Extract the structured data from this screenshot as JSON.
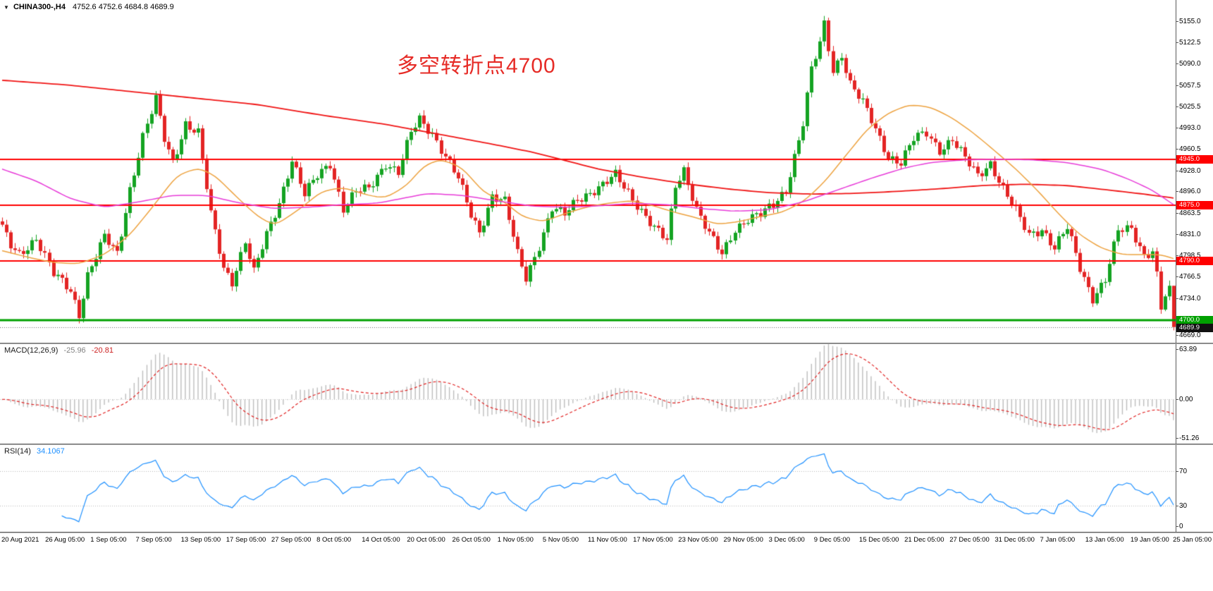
{
  "window": {
    "dropdown_glyph": "▼",
    "title": "CHINA300-,H4",
    "ohlc_text": "4752.6 4752.6 4684.8 4689.9"
  },
  "annotation": {
    "text": "多空转折点4700",
    "color": "#e62b26"
  },
  "indicators": {
    "macd": {
      "label": "MACD(12,26,9)",
      "main_value": "-25.96",
      "signal_value": "-20.81"
    },
    "rsi": {
      "label": "RSI(14)",
      "value": "34.1067"
    }
  },
  "chart_data": {
    "type": "candlestick",
    "symbol": "CHINA300-",
    "timeframe": "H4",
    "title": "多空转折点4700",
    "bars": 276,
    "up_color": "#14a322",
    "down_color": "#e32424",
    "price_axis": {
      "min": 4666,
      "max": 5187,
      "ticks": [
        5155.0,
        5122.5,
        5090.0,
        5057.5,
        5025.5,
        4993.0,
        4960.5,
        4928.0,
        4896.0,
        4863.5,
        4831.0,
        4798.5,
        4766.5,
        4734.0,
        4669.0
      ]
    },
    "hlines": [
      {
        "price": 4945.0,
        "label": "4945.0",
        "color": "#ff0000",
        "width": 2
      },
      {
        "price": 4875.0,
        "label": "4875.0",
        "color": "#ff0000",
        "width": 2
      },
      {
        "price": 4790.0,
        "label": "4790.0",
        "color": "#ff0000",
        "width": 2
      },
      {
        "price": 4700.0,
        "label": "4700.0",
        "color": "#00a000",
        "width": 3
      }
    ],
    "bid_line": {
      "price": 4689.9,
      "label": "4689.9",
      "line_color": "#666666",
      "tag_color": "#111111"
    },
    "last_bar": {
      "open": 4752.6,
      "high": 4752.6,
      "low": 4684.8,
      "close": 4689.9
    },
    "jitter": [
      6,
      3.5
    ],
    "wick": [
      2,
      6
    ],
    "close_waypoints": [
      [
        0,
        4840
      ],
      [
        2,
        4812
      ],
      [
        4,
        4800
      ],
      [
        8,
        4826
      ],
      [
        12,
        4770
      ],
      [
        16,
        4745
      ],
      [
        18,
        4710
      ],
      [
        20,
        4770
      ],
      [
        24,
        4826
      ],
      [
        27,
        4800
      ],
      [
        30,
        4900
      ],
      [
        33,
        4980
      ],
      [
        36,
        5035
      ],
      [
        38,
        4975
      ],
      [
        40,
        4940
      ],
      [
        43,
        5000
      ],
      [
        46,
        4985
      ],
      [
        49,
        4860
      ],
      [
        52,
        4780
      ],
      [
        54,
        4760
      ],
      [
        57,
        4820
      ],
      [
        59,
        4772
      ],
      [
        62,
        4830
      ],
      [
        65,
        4880
      ],
      [
        68,
        4945
      ],
      [
        71,
        4890
      ],
      [
        74,
        4920
      ],
      [
        77,
        4940
      ],
      [
        80,
        4870
      ],
      [
        83,
        4895
      ],
      [
        86,
        4900
      ],
      [
        90,
        4940
      ],
      [
        93,
        4925
      ],
      [
        96,
        4985
      ],
      [
        98,
        5005
      ],
      [
        101,
        4985
      ],
      [
        104,
        4950
      ],
      [
        107,
        4915
      ],
      [
        110,
        4860
      ],
      [
        112,
        4835
      ],
      [
        115,
        4890
      ],
      [
        118,
        4880
      ],
      [
        121,
        4800
      ],
      [
        123,
        4765
      ],
      [
        126,
        4815
      ],
      [
        129,
        4870
      ],
      [
        132,
        4860
      ],
      [
        135,
        4885
      ],
      [
        138,
        4895
      ],
      [
        141,
        4905
      ],
      [
        144,
        4920
      ],
      [
        147,
        4895
      ],
      [
        150,
        4868
      ],
      [
        153,
        4840
      ],
      [
        156,
        4820
      ],
      [
        158,
        4905
      ],
      [
        160,
        4930
      ],
      [
        163,
        4870
      ],
      [
        166,
        4830
      ],
      [
        169,
        4800
      ],
      [
        172,
        4840
      ],
      [
        175,
        4855
      ],
      [
        178,
        4860
      ],
      [
        181,
        4875
      ],
      [
        184,
        4900
      ],
      [
        186,
        4950
      ],
      [
        188,
        5000
      ],
      [
        190,
        5080
      ],
      [
        192,
        5120
      ],
      [
        193,
        5150
      ],
      [
        195,
        5080
      ],
      [
        197,
        5105
      ],
      [
        199,
        5060
      ],
      [
        202,
        5030
      ],
      [
        205,
        4990
      ],
      [
        208,
        4950
      ],
      [
        211,
        4940
      ],
      [
        214,
        4975
      ],
      [
        217,
        4985
      ],
      [
        220,
        4960
      ],
      [
        223,
        4975
      ],
      [
        226,
        4945
      ],
      [
        229,
        4920
      ],
      [
        232,
        4940
      ],
      [
        235,
        4900
      ],
      [
        238,
        4865
      ],
      [
        241,
        4830
      ],
      [
        244,
        4840
      ],
      [
        247,
        4810
      ],
      [
        250,
        4840
      ],
      [
        253,
        4780
      ],
      [
        256,
        4735
      ],
      [
        259,
        4762
      ],
      [
        262,
        4835
      ],
      [
        265,
        4840
      ],
      [
        268,
        4800
      ],
      [
        270,
        4806
      ],
      [
        271,
        4768
      ],
      [
        272,
        4718
      ],
      [
        273,
        4736
      ],
      [
        274,
        4753
      ],
      [
        275,
        4690
      ]
    ],
    "ma_lines": [
      {
        "name": "ma-slow-red",
        "color": "#f01414",
        "width": 1.8,
        "points": [
          [
            0,
            5065
          ],
          [
            15,
            5058
          ],
          [
            30,
            5048
          ],
          [
            45,
            5038
          ],
          [
            60,
            5028
          ],
          [
            75,
            5012
          ],
          [
            90,
            4998
          ],
          [
            105,
            4980
          ],
          [
            115,
            4968
          ],
          [
            125,
            4955
          ],
          [
            131,
            4945
          ],
          [
            140,
            4930
          ],
          [
            150,
            4918
          ],
          [
            160,
            4908
          ],
          [
            170,
            4900
          ],
          [
            180,
            4894
          ],
          [
            190,
            4892
          ],
          [
            200,
            4893
          ],
          [
            210,
            4896
          ],
          [
            220,
            4900
          ],
          [
            230,
            4905
          ],
          [
            240,
            4907
          ],
          [
            250,
            4905
          ],
          [
            260,
            4898
          ],
          [
            268,
            4892
          ],
          [
            275,
            4886
          ]
        ]
      },
      {
        "name": "ma-medium-orange",
        "color": "#eda23f",
        "width": 1.5,
        "points": [
          [
            0,
            4806
          ],
          [
            6,
            4796
          ],
          [
            12,
            4788
          ],
          [
            18,
            4786
          ],
          [
            24,
            4800
          ],
          [
            30,
            4830
          ],
          [
            36,
            4878
          ],
          [
            41,
            4920
          ],
          [
            46,
            4932
          ],
          [
            50,
            4920
          ],
          [
            55,
            4888
          ],
          [
            60,
            4858
          ],
          [
            64,
            4844
          ],
          [
            70,
            4870
          ],
          [
            75,
            4896
          ],
          [
            80,
            4902
          ],
          [
            86,
            4890
          ],
          [
            90,
            4886
          ],
          [
            95,
            4905
          ],
          [
            99,
            4935
          ],
          [
            103,
            4945
          ],
          [
            108,
            4932
          ],
          [
            113,
            4895
          ],
          [
            118,
            4880
          ],
          [
            122,
            4858
          ],
          [
            127,
            4850
          ],
          [
            132,
            4862
          ],
          [
            137,
            4872
          ],
          [
            142,
            4878
          ],
          [
            148,
            4882
          ],
          [
            153,
            4874
          ],
          [
            158,
            4864
          ],
          [
            163,
            4856
          ],
          [
            168,
            4846
          ],
          [
            173,
            4850
          ],
          [
            178,
            4858
          ],
          [
            183,
            4864
          ],
          [
            188,
            4880
          ],
          [
            193,
            4910
          ],
          [
            198,
            4950
          ],
          [
            203,
            4990
          ],
          [
            208,
            5015
          ],
          [
            213,
            5028
          ],
          [
            218,
            5024
          ],
          [
            223,
            5008
          ],
          [
            228,
            4985
          ],
          [
            233,
            4958
          ],
          [
            238,
            4930
          ],
          [
            243,
            4898
          ],
          [
            248,
            4862
          ],
          [
            253,
            4830
          ],
          [
            258,
            4810
          ],
          [
            263,
            4800
          ],
          [
            268,
            4800
          ],
          [
            272,
            4800
          ],
          [
            275,
            4794
          ]
        ]
      },
      {
        "name": "ma-fast-magenta",
        "color": "#e73bd8",
        "width": 1.5,
        "points": [
          [
            0,
            4930
          ],
          [
            8,
            4912
          ],
          [
            16,
            4885
          ],
          [
            24,
            4872
          ],
          [
            32,
            4880
          ],
          [
            40,
            4890
          ],
          [
            48,
            4890
          ],
          [
            56,
            4878
          ],
          [
            64,
            4870
          ],
          [
            72,
            4872
          ],
          [
            80,
            4876
          ],
          [
            88,
            4878
          ],
          [
            96,
            4888
          ],
          [
            100,
            4893
          ],
          [
            108,
            4890
          ],
          [
            116,
            4882
          ],
          [
            124,
            4874
          ],
          [
            132,
            4872
          ],
          [
            140,
            4874
          ],
          [
            148,
            4878
          ],
          [
            156,
            4876
          ],
          [
            164,
            4870
          ],
          [
            172,
            4866
          ],
          [
            180,
            4868
          ],
          [
            188,
            4880
          ],
          [
            196,
            4898
          ],
          [
            204,
            4916
          ],
          [
            212,
            4932
          ],
          [
            218,
            4940
          ],
          [
            226,
            4944
          ],
          [
            234,
            4945
          ],
          [
            242,
            4944
          ],
          [
            250,
            4940
          ],
          [
            258,
            4930
          ],
          [
            264,
            4916
          ],
          [
            270,
            4898
          ],
          [
            275,
            4876
          ]
        ]
      }
    ],
    "macd": {
      "fast": 12,
      "slow": 26,
      "signal": 9,
      "hist_color": "#bdbdbd",
      "signal_color": "#e02020",
      "ymax": 63.89,
      "ymin": -51.26,
      "axis_labels": [
        "63.89",
        "0.00",
        "-51.26"
      ],
      "current_main": -25.96,
      "current_signal": -20.81
    },
    "rsi": {
      "period": 14,
      "color": "#1e90ff",
      "levels": [
        70,
        30
      ],
      "axis_labels": [
        "70",
        "30",
        "0"
      ],
      "ymax": 100,
      "ymin": 0,
      "current": 34.1067
    },
    "time_labels": [
      "20 Aug 2021",
      "26 Aug 05:00",
      "1 Sep 05:00",
      "7 Sep 05:00",
      "13 Sep 05:00",
      "17 Sep 05:00",
      "27 Sep 05:00",
      "8 Oct 05:00",
      "14 Oct 05:00",
      "20 Oct 05:00",
      "26 Oct 05:00",
      "1 Nov 05:00",
      "5 Nov 05:00",
      "11 Nov 05:00",
      "17 Nov 05:00",
      "23 Nov 05:00",
      "29 Nov 05:00",
      "3 Dec 05:00",
      "9 Dec 05:00",
      "15 Dec 05:00",
      "21 Dec 05:00",
      "27 Dec 05:00",
      "31 Dec 05:00",
      "7 Jan 05:00",
      "13 Jan 05:00",
      "19 Jan 05:00",
      "25 Jan 05:00"
    ]
  }
}
